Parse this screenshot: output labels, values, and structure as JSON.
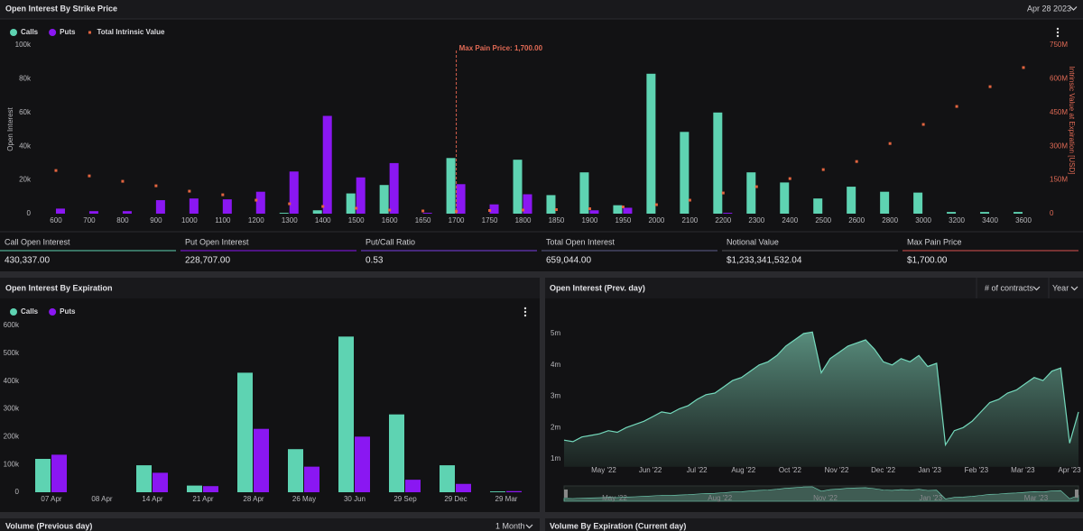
{
  "chart_data": [
    {
      "type": "bar",
      "title": "Open Interest By Strike Price",
      "date": "Apr 28 2023",
      "categories": [
        "600",
        "700",
        "800",
        "900",
        "1000",
        "1100",
        "1200",
        "1300",
        "1400",
        "1500",
        "1600",
        "1650",
        "1700",
        "1750",
        "1800",
        "1850",
        "1900",
        "1950",
        "2000",
        "2100",
        "2200",
        "2300",
        "2400",
        "2500",
        "2600",
        "2800",
        "3000",
        "3200",
        "3400",
        "3600"
      ],
      "series": [
        {
          "name": "Calls",
          "color": "#5ed3b2",
          "values": [
            0,
            0,
            0,
            0,
            0,
            0,
            0,
            500,
            2000,
            12000,
            17000,
            0,
            33000,
            0,
            32000,
            11000,
            24500,
            5000,
            83000,
            48500,
            60000,
            24500,
            18500,
            9000,
            16000,
            13000,
            12500,
            1000,
            1000,
            1000
          ]
        },
        {
          "name": "Puts",
          "color": "#8a17f2",
          "values": [
            3000,
            1500,
            1500,
            8000,
            9000,
            8500,
            13000,
            25000,
            58000,
            21500,
            30000,
            500,
            17500,
            5500,
            11500,
            0,
            2000,
            3500,
            0,
            0,
            500,
            0,
            0,
            0,
            0,
            0,
            0,
            0,
            0,
            0
          ]
        },
        {
          "name": "Total Intrinsic Value",
          "color": "#e2643f",
          "type": "scatter",
          "axis": "y2",
          "values": [
            192000000,
            168000000,
            144000000,
            124000000,
            100000000,
            84000000,
            60000000,
            44000000,
            32000000,
            24000000,
            16000000,
            12000000,
            10000000,
            14000000,
            16000000,
            18000000,
            22000000,
            30000000,
            40000000,
            60000000,
            92000000,
            120000000,
            156000000,
            196000000,
            232000000,
            312000000,
            397000000,
            477000000,
            565000000,
            650000000
          ]
        }
      ],
      "ylabel": "Open Interest",
      "y2label": "Intrinsic Value at Expiration [USD]",
      "ylim": [
        0,
        100000
      ],
      "yticks": [
        0,
        {
          "value": 20000,
          "label": "20k"
        },
        {
          "value": 40000,
          "label": "40k"
        },
        {
          "value": 60000,
          "label": "60k"
        },
        {
          "value": 80000,
          "label": "80k"
        },
        {
          "value": 100000,
          "label": "100k"
        }
      ],
      "y2lim": [
        0,
        750000000
      ],
      "y2ticks": [
        0,
        {
          "value": 150000000,
          "label": "150M"
        },
        {
          "value": 300000000,
          "label": "300M"
        },
        {
          "value": 450000000,
          "label": "450M"
        },
        {
          "value": 600000000,
          "label": "600M"
        },
        {
          "value": 750000000,
          "label": "750M"
        }
      ],
      "annotation": {
        "label": "Max Pain Price: 1,700.00",
        "value": 1700
      }
    },
    {
      "type": "bar",
      "title": "Open Interest By Expiration",
      "categories": [
        "07 Apr",
        "08 Apr",
        "14 Apr",
        "21 Apr",
        "28 Apr",
        "26 May",
        "30 Jun",
        "29 Sep",
        "29 Dec",
        "29 Mar"
      ],
      "series": [
        {
          "name": "Calls",
          "color": "#5ed3b2",
          "values": [
            120000,
            0,
            97000,
            24000,
            430000,
            155000,
            560000,
            280000,
            97000,
            3000
          ]
        },
        {
          "name": "Puts",
          "color": "#8a17f2",
          "values": [
            135000,
            0,
            70000,
            22000,
            228000,
            92000,
            200000,
            45000,
            30000,
            4000
          ]
        }
      ],
      "ylim": [
        0,
        600000
      ],
      "yticks": [
        0,
        {
          "value": 100000,
          "label": "100k"
        },
        {
          "value": 200000,
          "label": "200k"
        },
        {
          "value": 300000,
          "label": "300k"
        },
        {
          "value": 400000,
          "label": "400k"
        },
        {
          "value": 500000,
          "label": "500k"
        },
        {
          "value": 600000,
          "label": "600k"
        }
      ]
    },
    {
      "type": "area",
      "title": "Open Interest (Prev. day)",
      "controls": [
        "# of contracts",
        "Year"
      ],
      "color": "#74d9bc",
      "values": [
        1600000,
        1550000,
        1700000,
        1750000,
        1800000,
        1900000,
        1850000,
        2000000,
        2100000,
        2200000,
        2350000,
        2500000,
        2450000,
        2600000,
        2700000,
        2900000,
        3050000,
        3100000,
        3300000,
        3500000,
        3600000,
        3800000,
        4000000,
        4100000,
        4300000,
        4600000,
        4800000,
        5000000,
        5050000,
        3750000,
        4200000,
        4400000,
        4600000,
        4700000,
        4800000,
        4500000,
        4100000,
        4000000,
        4200000,
        4100000,
        4300000,
        3950000,
        4050000,
        1450000,
        1900000,
        2000000,
        2200000,
        2500000,
        2800000,
        2900000,
        3100000,
        3200000,
        3400000,
        3600000,
        3500000,
        3800000,
        3900000,
        1500000,
        2500000
      ],
      "xticks": [
        "May '22",
        "Jun '22",
        "Jul '22",
        "Aug '22",
        "Oct '22",
        "Nov '22",
        "Dec '22",
        "Jan '23",
        "Feb '23",
        "Mar '23",
        "Apr '23"
      ],
      "ylim": [
        750000,
        5300000
      ],
      "yticks": [
        {
          "value": 1000000,
          "label": "1m"
        },
        {
          "value": 2000000,
          "label": "2m"
        },
        {
          "value": 3000000,
          "label": "3m"
        },
        {
          "value": 4000000,
          "label": "4m"
        },
        {
          "value": 5000000,
          "label": "5m"
        }
      ],
      "navigator_ticks": [
        "May '22",
        "Aug '22",
        "Nov '22",
        "Jan '23",
        "Mar '23"
      ]
    }
  ],
  "stats": [
    {
      "label": "Call Open Interest",
      "value": "430,337.00",
      "color": "#5ed3b2"
    },
    {
      "label": "Put Open Interest",
      "value": "228,707.00",
      "color": "#8a17f2"
    },
    {
      "label": "Put/Call Ratio",
      "value": "0.53",
      "color": "#7b3fe4"
    },
    {
      "label": "Total Open Interest",
      "value": "659,044.00",
      "color": "#5d5d8c"
    },
    {
      "label": "Notional Value",
      "value": "$1,233,341,532.04",
      "color": "#55555c"
    },
    {
      "label": "Max Pain Price",
      "value": "$1,700.00",
      "color": "#d9534f"
    }
  ],
  "panels": [
    {
      "title": "Volume (Previous day)",
      "control": "1 Month"
    },
    {
      "title": "Volume By Expiration (Current day)"
    }
  ]
}
